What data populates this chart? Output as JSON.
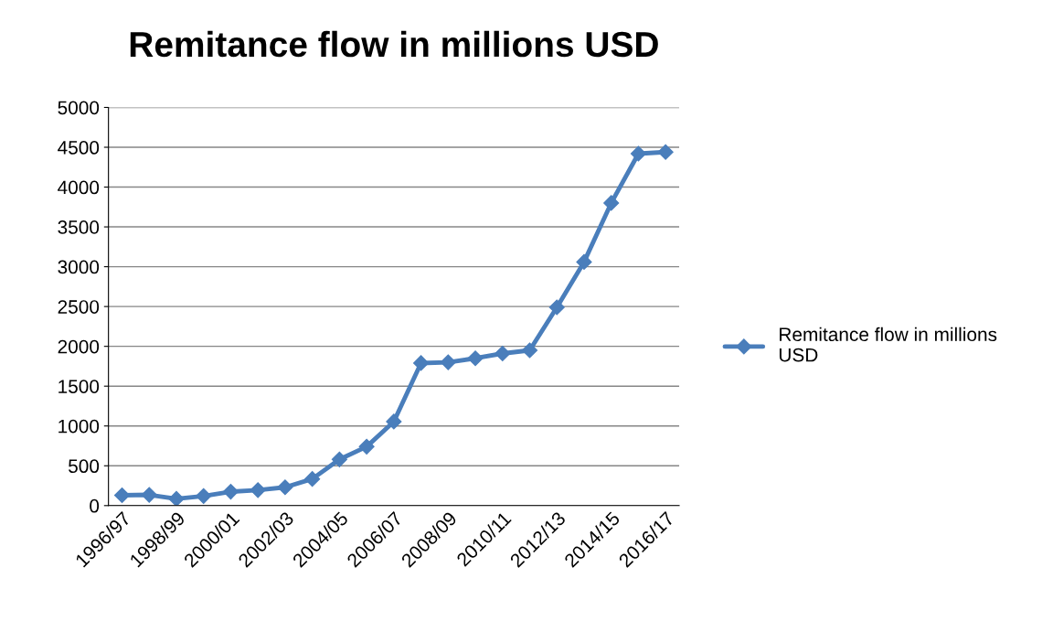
{
  "chart_data": {
    "type": "line",
    "title": "Remitance flow in millions USD",
    "categories": [
      "1996/97",
      null,
      "1998/99",
      null,
      "2000/01",
      null,
      "2002/03",
      null,
      "2004/05",
      null,
      "2006/07",
      null,
      "2008/09",
      null,
      "2010/11",
      null,
      "2012/13",
      null,
      "2014/15",
      null,
      "2016/17"
    ],
    "series": [
      {
        "name": "Remitance flow in millions USD",
        "color": "#4a7ebb",
        "values": [
          130,
          135,
          85,
          120,
          175,
          195,
          230,
          335,
          580,
          740,
          1055,
          1790,
          1800,
          1850,
          1910,
          1950,
          2490,
          3060,
          3800,
          4420,
          4440
        ]
      }
    ],
    "ylim": [
      0,
      5000
    ],
    "yticks": [
      0,
      500,
      1000,
      1500,
      2000,
      2500,
      3000,
      3500,
      4000,
      4500,
      5000
    ],
    "grid": "y",
    "legend": "right",
    "marker": "diamond",
    "line_style": "solid"
  }
}
